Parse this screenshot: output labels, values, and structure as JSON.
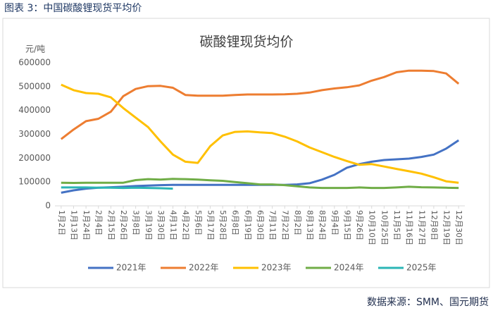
{
  "header": "图表 3：中国碳酸锂现货平均价",
  "source": "数据来源：SMM、国元期货",
  "chart_data": {
    "type": "line",
    "title": "碳酸锂现货均价",
    "y_label": "元/吨",
    "categories": [
      "1月2日",
      "1月13日",
      "1月24日",
      "2月4日",
      "2月15日",
      "2月26日",
      "3月8日",
      "3月19日",
      "3月30日",
      "4月11日",
      "4月22日",
      "5月6日",
      "5月17日",
      "5月28日",
      "6月8日",
      "6月19日",
      "6月30日",
      "7月11日",
      "7月22日",
      "8月2日",
      "8月13日",
      "8月24日",
      "9月4日",
      "9月15日",
      "9月26日",
      "10月10日",
      "10月25日",
      "11月5日",
      "11月16日",
      "11月27日",
      "12月8日",
      "12月19日",
      "12月30日"
    ],
    "series": [
      {
        "name": "2021年",
        "color": "#4472c4",
        "values": [
          55000,
          65000,
          72000,
          76000,
          78000,
          80000,
          83000,
          85000,
          87000,
          88000,
          88000,
          88000,
          88000,
          88000,
          88000,
          88000,
          88000,
          88000,
          88000,
          90000,
          95000,
          110000,
          130000,
          160000,
          175000,
          185000,
          192000,
          195000,
          198000,
          205000,
          215000,
          240000,
          275000
        ]
      },
      {
        "name": "2022年",
        "color": "#ed7d31",
        "values": [
          280000,
          320000,
          355000,
          365000,
          395000,
          460000,
          490000,
          502000,
          503000,
          495000,
          465000,
          462000,
          462000,
          462000,
          465000,
          467000,
          467000,
          467000,
          468000,
          470000,
          475000,
          485000,
          492000,
          497000,
          505000,
          525000,
          540000,
          560000,
          567000,
          567000,
          565000,
          555000,
          512000
        ]
      },
      {
        "name": "2023年",
        "color": "#ffc000",
        "values": [
          508000,
          485000,
          473000,
          470000,
          455000,
          410000,
          370000,
          330000,
          270000,
          215000,
          185000,
          180000,
          250000,
          295000,
          310000,
          312000,
          308000,
          305000,
          290000,
          270000,
          245000,
          225000,
          205000,
          188000,
          172000,
          175000,
          165000,
          155000,
          145000,
          135000,
          120000,
          103000,
          97000
        ]
      },
      {
        "name": "2024年",
        "color": "#70ad47",
        "values": [
          97000,
          96000,
          97000,
          97000,
          97000,
          97000,
          108000,
          112000,
          110000,
          113000,
          112000,
          110000,
          107000,
          105000,
          100000,
          95000,
          90000,
          90000,
          87000,
          82000,
          77000,
          75000,
          75000,
          75000,
          77000,
          75000,
          75000,
          77000,
          80000,
          78000,
          77000,
          76000,
          75000
        ]
      },
      {
        "name": "2025年",
        "color": "#2bb5b5",
        "values": [
          77000,
          77000,
          77000,
          76000,
          76000,
          75000,
          76000,
          75000,
          74000,
          72000,
          null,
          null,
          null,
          null,
          null,
          null,
          null,
          null,
          null,
          null,
          null,
          null,
          null,
          null,
          null,
          null,
          null,
          null,
          null,
          null,
          null,
          null,
          null
        ]
      }
    ],
    "ylim": [
      0,
      600000
    ],
    "yticks": [
      0,
      100000,
      200000,
      300000,
      400000,
      500000,
      600000
    ],
    "grid": false
  }
}
